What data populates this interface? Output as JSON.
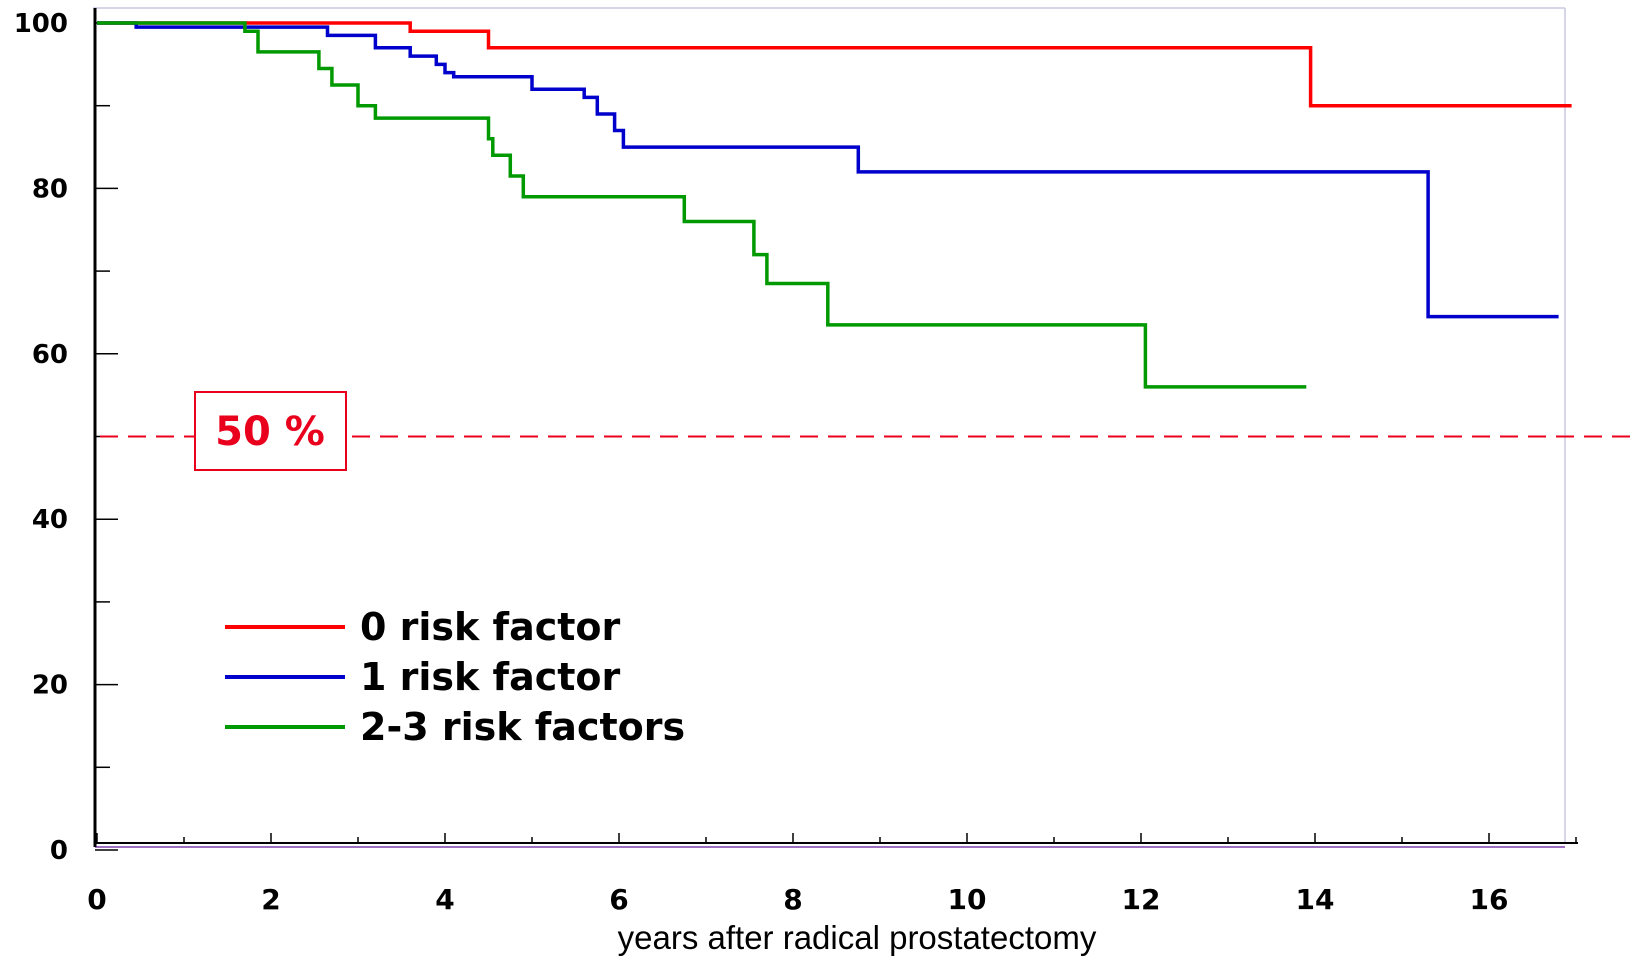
{
  "chart_data": {
    "type": "line",
    "step": true,
    "xlabel": "years after radical prostatectomy",
    "ylabel": "",
    "xlim": [
      0,
      17
    ],
    "ylim": [
      0,
      100
    ],
    "x_ticks": [
      0,
      2,
      4,
      6,
      8,
      10,
      12,
      14,
      16
    ],
    "y_ticks": [
      0,
      20,
      40,
      60,
      80,
      100
    ],
    "grid": false,
    "legend": {
      "placement": "bottom-left"
    },
    "reference_line": {
      "y": 50,
      "label": "50 %",
      "color": "#e8001c",
      "style": "dashed"
    },
    "series": [
      {
        "name": "0 risk factor",
        "color": "#ff0000",
        "points": [
          [
            0,
            100
          ],
          [
            3.6,
            100
          ],
          [
            3.6,
            99
          ],
          [
            4.5,
            99
          ],
          [
            4.5,
            97
          ],
          [
            13.95,
            97
          ],
          [
            13.95,
            90
          ],
          [
            16.95,
            90
          ]
        ]
      },
      {
        "name": "1 risk factor",
        "color": "#0000cc",
        "points": [
          [
            0,
            100
          ],
          [
            0.45,
            100
          ],
          [
            0.45,
            99.5
          ],
          [
            2.65,
            99.5
          ],
          [
            2.65,
            98.5
          ],
          [
            3.2,
            98.5
          ],
          [
            3.2,
            97
          ],
          [
            3.6,
            97
          ],
          [
            3.6,
            96
          ],
          [
            3.9,
            96
          ],
          [
            3.9,
            95
          ],
          [
            4.0,
            95
          ],
          [
            4.0,
            94
          ],
          [
            4.1,
            94
          ],
          [
            4.1,
            93.5
          ],
          [
            5.0,
            93.5
          ],
          [
            5.0,
            92
          ],
          [
            5.6,
            92
          ],
          [
            5.6,
            91
          ],
          [
            5.75,
            91
          ],
          [
            5.75,
            89
          ],
          [
            5.95,
            89
          ],
          [
            5.95,
            87
          ],
          [
            6.05,
            87
          ],
          [
            6.05,
            85
          ],
          [
            8.75,
            85
          ],
          [
            8.75,
            82
          ],
          [
            15.3,
            82
          ],
          [
            15.3,
            64.5
          ],
          [
            16.8,
            64.5
          ]
        ]
      },
      {
        "name": "2-3 risk factors",
        "color": "#009900",
        "points": [
          [
            0,
            100
          ],
          [
            1.7,
            100
          ],
          [
            1.7,
            99
          ],
          [
            1.85,
            99
          ],
          [
            1.85,
            96.5
          ],
          [
            2.55,
            96.5
          ],
          [
            2.55,
            94.5
          ],
          [
            2.7,
            94.5
          ],
          [
            2.7,
            92.5
          ],
          [
            3.0,
            92.5
          ],
          [
            3.0,
            90
          ],
          [
            3.2,
            90
          ],
          [
            3.2,
            88.5
          ],
          [
            4.5,
            88.5
          ],
          [
            4.5,
            86
          ],
          [
            4.55,
            86
          ],
          [
            4.55,
            84
          ],
          [
            4.75,
            84
          ],
          [
            4.75,
            81.5
          ],
          [
            4.9,
            81.5
          ],
          [
            4.9,
            79
          ],
          [
            6.75,
            79
          ],
          [
            6.75,
            76
          ],
          [
            7.55,
            76
          ],
          [
            7.55,
            72
          ],
          [
            7.7,
            72
          ],
          [
            7.7,
            68.5
          ],
          [
            8.4,
            68.5
          ],
          [
            8.4,
            63.5
          ],
          [
            12.05,
            63.5
          ],
          [
            12.05,
            56
          ],
          [
            13.9,
            56
          ]
        ]
      }
    ]
  }
}
